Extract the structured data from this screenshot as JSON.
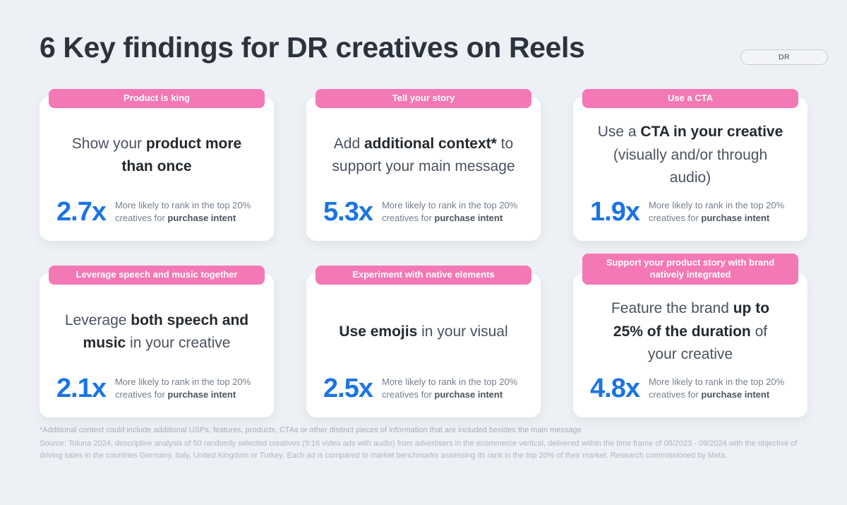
{
  "header": {
    "title": "6 Key findings for DR creatives on Reels",
    "dr_label": "DR"
  },
  "cards": [
    {
      "header": "Product is king",
      "message_segments": [
        {
          "text": "Show your ",
          "bold": false
        },
        {
          "text": "product more",
          "bold": true,
          "br": true
        },
        {
          "text": "than once",
          "bold": true
        }
      ],
      "multiplier": "2.7x"
    },
    {
      "header": "Tell your story",
      "message_segments": [
        {
          "text": "Add ",
          "bold": false
        },
        {
          "text": "additional context*",
          "bold": true
        },
        {
          "text": " to",
          "bold": false,
          "br": true
        },
        {
          "text": "support your main message",
          "bold": false
        }
      ],
      "multiplier": "5.3x"
    },
    {
      "header": "Use a CTA",
      "message_segments": [
        {
          "text": "Use a ",
          "bold": false
        },
        {
          "text": "CTA in your creative",
          "bold": true,
          "br": true
        },
        {
          "text": "(visually and/or through",
          "bold": false,
          "br": true
        },
        {
          "text": "audio)",
          "bold": false
        }
      ],
      "multiplier": "1.9x"
    },
    {
      "header": "Leverage speech and music together",
      "message_segments": [
        {
          "text": "Leverage ",
          "bold": false
        },
        {
          "text": "both speech and",
          "bold": true,
          "br": true
        },
        {
          "text": "music",
          "bold": true
        },
        {
          "text": " in your creative",
          "bold": false
        }
      ],
      "multiplier": "2.1x"
    },
    {
      "header": "Experiment with native elements",
      "message_segments": [
        {
          "text": "Use emojis",
          "bold": true
        },
        {
          "text": " in your visual",
          "bold": false
        }
      ],
      "multiplier": "2.5x"
    },
    {
      "header": "Support your product story with brand natively integrated",
      "message_segments": [
        {
          "text": "Feature the brand ",
          "bold": false
        },
        {
          "text": "up to",
          "bold": true,
          "br": true
        },
        {
          "text": "25% of the duration",
          "bold": true
        },
        {
          "text": " of",
          "bold": false,
          "br": true
        },
        {
          "text": "your creative",
          "bold": false
        }
      ],
      "multiplier": "4.8x"
    }
  ],
  "stat_caption": {
    "line1": "More likely to rank in the top 20%",
    "line2_prefix": "creatives for ",
    "line2_bold": "purchase intent"
  },
  "footer": {
    "footnote": "*Additional context could include additional USPs, features, products, CTAs or other distinct pieces of information that are included besides the main message",
    "source": "Source: Toluna 2024, descriptive analysis of 50 randomly selected creatives (9:16 video ads with audio)  from advertisers in the ecommerce vertical, delivered within the time frame of 08/2023 - 09/2024 with the objective of driving sales in the countries Germany, Italy, United Kingdom or Turkey. Each ad is compared to market benchmarks assessing its rank in the top 20% of their market. Research commissioned by Meta."
  },
  "colors": {
    "background": "#EDF0F4",
    "card": "#FFFFFF",
    "pink": "#F478B4",
    "blue": "#1B74E4",
    "title_text": "#2C333E"
  }
}
